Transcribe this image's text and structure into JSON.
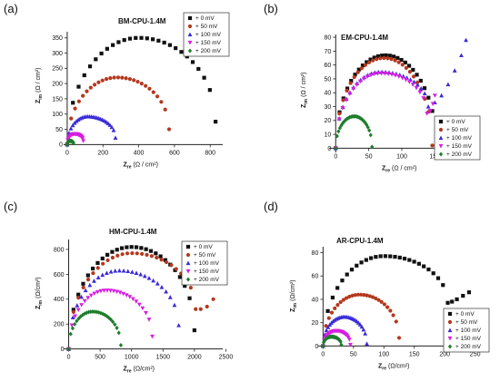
{
  "figure": {
    "colors": {
      "0 mV": "#111111",
      "50 mV": "#b5381d",
      "100 mV": "#3a2bd8",
      "150 mV": "#d81ee0",
      "200 mV": "#1e7d2c"
    }
  },
  "chart_data": [
    {
      "letter": "(a)",
      "type": "scatter",
      "title": "BM-CPU-1.4M",
      "ylabel": "Z",
      "ylabel_sub": "im",
      "ylabel_unit": "(Ω / cm²)",
      "xlabel": "Z",
      "xlabel_sub": "re",
      "xlabel_unit": "(Ω / cm²)",
      "xlim": [
        -20,
        870
      ],
      "ylim": [
        -5,
        370
      ],
      "xticks": [
        0,
        200,
        400,
        600,
        800
      ],
      "yticks": [
        0,
        50,
        100,
        150,
        200,
        250,
        300,
        350
      ],
      "legend_position": "top-right",
      "series": [
        {
          "name": "+ 0 mV",
          "marker": "square",
          "arc": {
            "x0": 0,
            "peak_x": 400,
            "peak_y": 350,
            "x_end": 830,
            "y_end": 75
          }
        },
        {
          "name": "+ 50 mV",
          "marker": "circle",
          "arc": {
            "x0": 0,
            "peak_x": 280,
            "peak_y": 220,
            "x_end": 570,
            "y_end": 50
          }
        },
        {
          "name": "+ 100 mV",
          "marker": "triangle-up",
          "arc": {
            "x0": 0,
            "peak_x": 115,
            "peak_y": 92,
            "x_end": 270,
            "y_end": 22
          }
        },
        {
          "name": "+ 150 mV",
          "marker": "triangle-down",
          "arc": {
            "x0": 0,
            "peak_x": 40,
            "peak_y": 35,
            "x_end": 90,
            "y_end": 12
          }
        },
        {
          "name": "+ 200 mV",
          "marker": "diamond",
          "arc": {
            "x0": 0,
            "peak_x": 15,
            "peak_y": 12,
            "x_end": 35,
            "y_end": 4
          }
        }
      ]
    },
    {
      "letter": "(b)",
      "type": "scatter",
      "title": "EM-CPU-1.4M",
      "ylabel": "Z",
      "ylabel_sub": "im",
      "ylabel_unit": "(Ω / cm²)",
      "xlabel": "Z",
      "xlabel_sub": "re",
      "xlabel_unit": "(Ω / cm²)",
      "xlim": [
        -10,
        210
      ],
      "ylim": [
        -3,
        82
      ],
      "xticks": [
        0,
        50,
        100,
        150,
        200
      ],
      "yticks": [
        0,
        10,
        20,
        30,
        40,
        50,
        60,
        70,
        80
      ],
      "legend_position": "right",
      "series": [
        {
          "name": "+ 0 mV",
          "marker": "square",
          "arc": {
            "x0": 0,
            "peak_x": 75,
            "peak_y": 67,
            "x_end": 152,
            "y_end": 2
          }
        },
        {
          "name": "+ 50 mV",
          "marker": "circle",
          "arc": {
            "x0": 0,
            "peak_x": 73,
            "peak_y": 65,
            "x_end": 146,
            "y_end": 2
          }
        },
        {
          "name": "+ 100 mV",
          "marker": "triangle-up",
          "arc": {
            "x0": 0,
            "peak_x": 68,
            "peak_y": 55,
            "x_end": 140,
            "y_end": 30
          },
          "tail": [
            [
              150,
              33
            ],
            [
              160,
              38
            ],
            [
              170,
              46
            ],
            [
              180,
              56
            ],
            [
              190,
              67
            ],
            [
              197,
              78
            ]
          ]
        },
        {
          "name": "+ 150 mV",
          "marker": "triangle-down",
          "arc": {
            "x0": 0,
            "peak_x": 68,
            "peak_y": 54,
            "x_end": 138,
            "y_end": 25
          },
          "tail": [
            [
              143,
              27
            ],
            [
              147,
              32
            ],
            [
              150,
              38
            ]
          ]
        },
        {
          "name": "+ 200 mV",
          "marker": "diamond",
          "arc": {
            "x0": 0,
            "peak_x": 28,
            "peak_y": 23,
            "x_end": 55,
            "y_end": 1
          }
        }
      ]
    },
    {
      "letter": "(c)",
      "type": "scatter",
      "title": "HM-CPU-1.4M",
      "ylabel": "Z",
      "ylabel_sub": "im",
      "ylabel_unit": "(Ω/cm²)",
      "xlabel": "Z",
      "xlabel_sub": "re",
      "xlabel_unit": "(Ω/cm²)",
      "xlim": [
        -80,
        2450
      ],
      "ylim": [
        -10,
        880
      ],
      "xticks": [
        0,
        500,
        1000,
        1500,
        2000,
        2500
      ],
      "yticks": [
        0,
        200,
        400,
        600,
        800
      ],
      "legend_position": "top-right",
      "series": [
        {
          "name": "+ 0 mV",
          "marker": "square",
          "arc": {
            "x0": 0,
            "peak_x": 1000,
            "peak_y": 820,
            "x_end": 2000,
            "y_end": 150
          }
        },
        {
          "name": "+ 50 mV",
          "marker": "circle",
          "arc": {
            "x0": 0,
            "peak_x": 1000,
            "peak_y": 770,
            "x_end": 2020,
            "y_end": 320
          },
          "tail": [
            [
              2100,
              320
            ],
            [
              2200,
              340
            ],
            [
              2300,
              400
            ]
          ]
        },
        {
          "name": "+ 100 mV",
          "marker": "triangle-up",
          "arc": {
            "x0": 0,
            "peak_x": 800,
            "peak_y": 630,
            "x_end": 1750,
            "y_end": 190
          }
        },
        {
          "name": "+ 150 mV",
          "marker": "triangle-down",
          "arc": {
            "x0": 0,
            "peak_x": 600,
            "peak_y": 470,
            "x_end": 1330,
            "y_end": 100
          }
        },
        {
          "name": "+ 200 mV",
          "marker": "diamond",
          "arc": {
            "x0": 0,
            "peak_x": 380,
            "peak_y": 300,
            "x_end": 830,
            "y_end": 30
          }
        }
      ]
    },
    {
      "letter": "(d)",
      "type": "scatter",
      "title": "AR-CPU-1.4M",
      "ylabel": "Z",
      "ylabel_sub": "im",
      "ylabel_unit": "(Ω/cm²)",
      "xlabel": "Z",
      "xlabel_sub": "re",
      "xlabel_unit": "(Ω/cm²)",
      "xlim": [
        -8,
        255
      ],
      "ylim": [
        -2,
        85
      ],
      "xticks": [
        0,
        50,
        100,
        150,
        200,
        250
      ],
      "yticks": [
        0,
        20,
        40,
        60,
        80
      ],
      "legend_position": "bottom-right",
      "series": [
        {
          "name": "+ 0 mV",
          "marker": "square",
          "arc": {
            "x0": 0,
            "peak_x": 100,
            "peak_y": 77,
            "x_end": 205,
            "y_end": 37
          },
          "tail": [
            [
              212,
              38
            ],
            [
              220,
              40
            ],
            [
              230,
              43
            ],
            [
              240,
              46
            ]
          ]
        },
        {
          "name": "+ 50 mV",
          "marker": "circle",
          "arc": {
            "x0": 0,
            "peak_x": 60,
            "peak_y": 44,
            "x_end": 125,
            "y_end": 7
          }
        },
        {
          "name": "+ 100 mV",
          "marker": "triangle-up",
          "arc": {
            "x0": 0,
            "peak_x": 35,
            "peak_y": 25,
            "x_end": 72,
            "y_end": 2
          }
        },
        {
          "name": "+ 150 mV",
          "marker": "triangle-down",
          "arc": {
            "x0": 0,
            "peak_x": 22,
            "peak_y": 13,
            "x_end": 45,
            "y_end": 1
          }
        },
        {
          "name": "+ 200 mV",
          "marker": "diamond",
          "arc": {
            "x0": 0,
            "peak_x": 14,
            "peak_y": 8,
            "x_end": 30,
            "y_end": 1
          }
        }
      ]
    }
  ]
}
